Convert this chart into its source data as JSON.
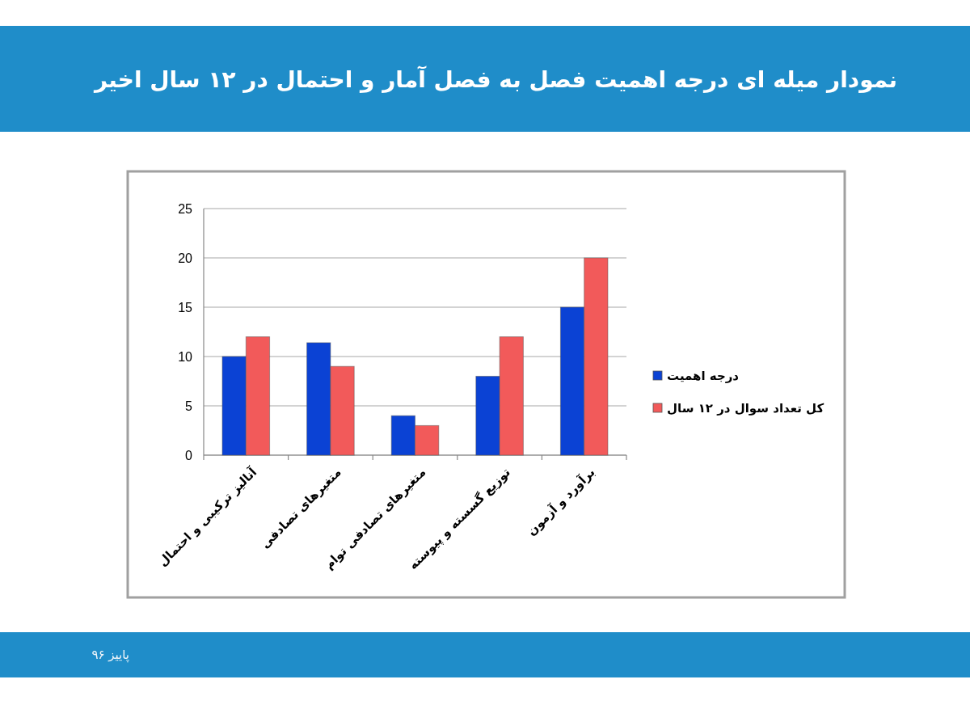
{
  "chart_data": {
    "type": "bar",
    "title": "نمودار میله ای درجه اهمیت فصل به فصل آمار و احتمال در ۱۲ سال اخیر",
    "categories": [
      "آنالیز ترکیبی و احتمال",
      "متغیرهای تصادفی",
      "متغیرهای تصادفی توام",
      "توزیع گسسته و پیوسته",
      "برآورد و آزمون"
    ],
    "series": [
      {
        "name": "درجه اهمیت",
        "color": "#0b42d4",
        "values": [
          10,
          11.4,
          4,
          8,
          15
        ]
      },
      {
        "name": "کل تعداد سوال در ۱۲ سال",
        "color": "#f25a5a",
        "values": [
          12,
          9,
          3,
          12,
          20
        ]
      }
    ],
    "ylim": [
      0,
      25
    ],
    "yticks": [
      0,
      5,
      10,
      15,
      20,
      25
    ],
    "grid": "y",
    "legend": "right",
    "annotations": [
      "پاییز ۹۶"
    ]
  }
}
